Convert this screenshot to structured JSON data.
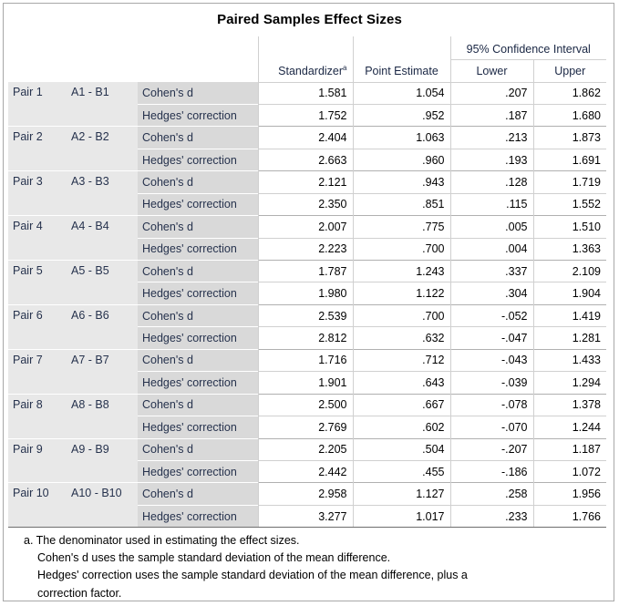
{
  "title": "Paired Samples Effect Sizes",
  "headers": {
    "standardizer": "Standardizer",
    "standardizer_sup": "a",
    "point_estimate": "Point Estimate",
    "ci_group": "95% Confidence Interval",
    "lower": "Lower",
    "upper": "Upper"
  },
  "rows": [
    {
      "pair": "Pair 1",
      "vars": "A1 - B1",
      "cohen": {
        "label": "Cohen's d",
        "std": "1.581",
        "pe": "1.054",
        "lo": ".207",
        "up": "1.862"
      },
      "hedges": {
        "label": "Hedges' correction",
        "std": "1.752",
        "pe": ".952",
        "lo": ".187",
        "up": "1.680"
      }
    },
    {
      "pair": "Pair 2",
      "vars": "A2 - B2",
      "cohen": {
        "label": "Cohen's d",
        "std": "2.404",
        "pe": "1.063",
        "lo": ".213",
        "up": "1.873"
      },
      "hedges": {
        "label": "Hedges' correction",
        "std": "2.663",
        "pe": ".960",
        "lo": ".193",
        "up": "1.691"
      }
    },
    {
      "pair": "Pair 3",
      "vars": "A3 - B3",
      "cohen": {
        "label": "Cohen's d",
        "std": "2.121",
        "pe": ".943",
        "lo": ".128",
        "up": "1.719"
      },
      "hedges": {
        "label": "Hedges' correction",
        "std": "2.350",
        "pe": ".851",
        "lo": ".115",
        "up": "1.552"
      }
    },
    {
      "pair": "Pair 4",
      "vars": "A4 - B4",
      "cohen": {
        "label": "Cohen's d",
        "std": "2.007",
        "pe": ".775",
        "lo": ".005",
        "up": "1.510"
      },
      "hedges": {
        "label": "Hedges' correction",
        "std": "2.223",
        "pe": ".700",
        "lo": ".004",
        "up": "1.363"
      }
    },
    {
      "pair": "Pair 5",
      "vars": "A5 - B5",
      "cohen": {
        "label": "Cohen's d",
        "std": "1.787",
        "pe": "1.243",
        "lo": ".337",
        "up": "2.109"
      },
      "hedges": {
        "label": "Hedges' correction",
        "std": "1.980",
        "pe": "1.122",
        "lo": ".304",
        "up": "1.904"
      }
    },
    {
      "pair": "Pair 6",
      "vars": "A6 - B6",
      "cohen": {
        "label": "Cohen's d",
        "std": "2.539",
        "pe": ".700",
        "lo": "-.052",
        "up": "1.419"
      },
      "hedges": {
        "label": "Hedges' correction",
        "std": "2.812",
        "pe": ".632",
        "lo": "-.047",
        "up": "1.281"
      }
    },
    {
      "pair": "Pair 7",
      "vars": "A7 - B7",
      "cohen": {
        "label": "Cohen's d",
        "std": "1.716",
        "pe": ".712",
        "lo": "-.043",
        "up": "1.433"
      },
      "hedges": {
        "label": "Hedges' correction",
        "std": "1.901",
        "pe": ".643",
        "lo": "-.039",
        "up": "1.294"
      }
    },
    {
      "pair": "Pair 8",
      "vars": "A8 - B8",
      "cohen": {
        "label": "Cohen's d",
        "std": "2.500",
        "pe": ".667",
        "lo": "-.078",
        "up": "1.378"
      },
      "hedges": {
        "label": "Hedges' correction",
        "std": "2.769",
        "pe": ".602",
        "lo": "-.070",
        "up": "1.244"
      }
    },
    {
      "pair": "Pair 9",
      "vars": "A9 - B9",
      "cohen": {
        "label": "Cohen's d",
        "std": "2.205",
        "pe": ".504",
        "lo": "-.207",
        "up": "1.187"
      },
      "hedges": {
        "label": "Hedges' correction",
        "std": "2.442",
        "pe": ".455",
        "lo": "-.186",
        "up": "1.072"
      }
    },
    {
      "pair": "Pair 10",
      "vars": "A10 - B10",
      "cohen": {
        "label": "Cohen's d",
        "std": "2.958",
        "pe": "1.127",
        "lo": ".258",
        "up": "1.956"
      },
      "hedges": {
        "label": "Hedges' correction",
        "std": "3.277",
        "pe": "1.017",
        "lo": ".233",
        "up": "1.766"
      }
    }
  ],
  "footnote": {
    "line1": "a. The denominator used in estimating the effect sizes.",
    "line2": "Cohen's d uses the sample standard deviation of the mean difference.",
    "line3": "Hedges' correction uses the sample standard deviation of the mean difference, plus a",
    "line4": "correction factor."
  }
}
